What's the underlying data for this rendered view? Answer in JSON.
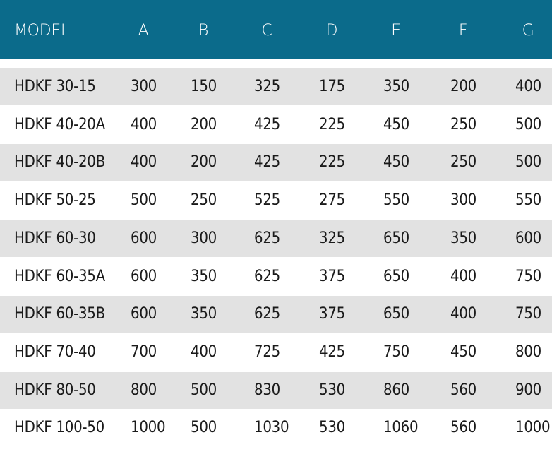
{
  "table": {
    "columns": [
      "MODEL",
      "A",
      "B",
      "C",
      "D",
      "E",
      "F",
      "G"
    ],
    "rows": [
      [
        "HDKF 30-15",
        300,
        150,
        325,
        175,
        350,
        200,
        400
      ],
      [
        "HDKF 40-20A",
        400,
        200,
        425,
        225,
        450,
        250,
        500
      ],
      [
        "HDKF 40-20B",
        400,
        200,
        425,
        225,
        450,
        250,
        500
      ],
      [
        "HDKF 50-25",
        500,
        250,
        525,
        275,
        550,
        300,
        550
      ],
      [
        "HDKF 60-30",
        600,
        300,
        625,
        325,
        650,
        350,
        600
      ],
      [
        "HDKF 60-35A",
        600,
        350,
        625,
        375,
        650,
        400,
        750
      ],
      [
        "HDKF 60-35B",
        600,
        350,
        625,
        375,
        650,
        400,
        750
      ],
      [
        "HDKF 70-40",
        700,
        400,
        725,
        425,
        750,
        450,
        800
      ],
      [
        "HDKF 80-50",
        800,
        500,
        830,
        530,
        860,
        560,
        900
      ],
      [
        "HDKF 100-50",
        1000,
        500,
        1030,
        530,
        1060,
        560,
        1000
      ]
    ]
  }
}
